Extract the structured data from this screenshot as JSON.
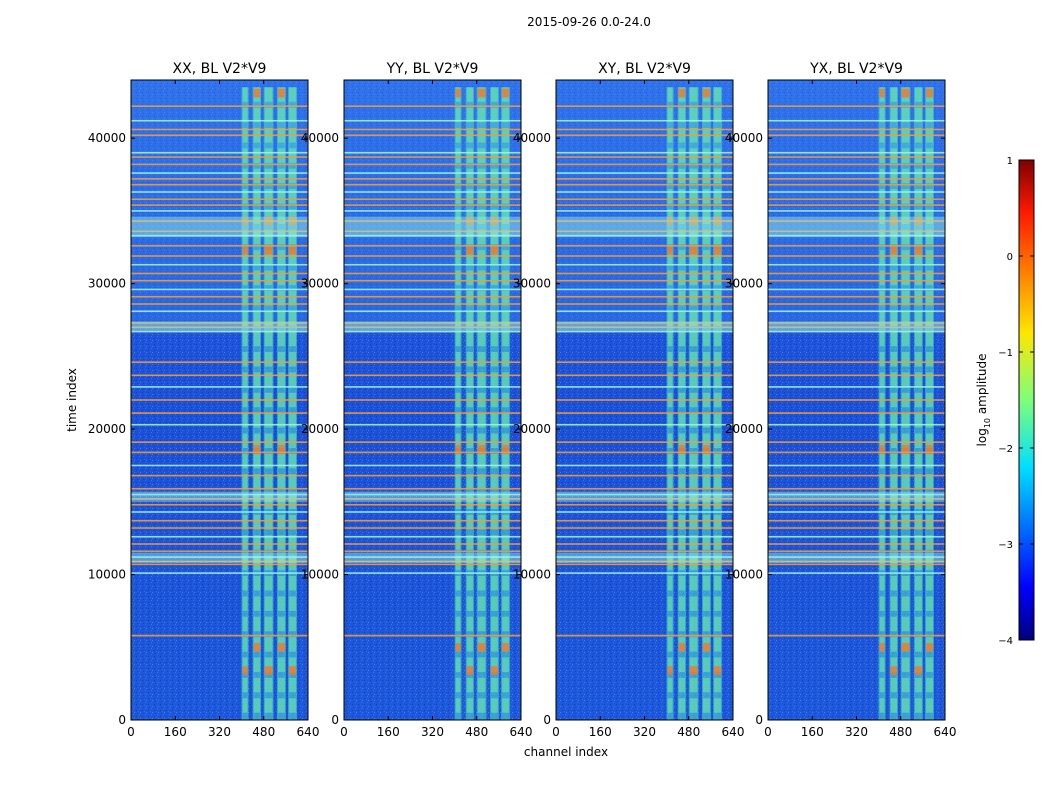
{
  "figure_title": "2015-09-26 0.0-24.0",
  "chart_data": [
    {
      "type": "heatmap",
      "title": "XX, BL V2*V9",
      "xlabel": "",
      "ylabel": "time index",
      "xlim": [
        0,
        640
      ],
      "ylim": [
        0,
        44000
      ],
      "xticks": [
        0,
        160,
        320,
        480,
        640
      ],
      "yticks": [
        0,
        10000,
        20000,
        30000,
        40000
      ],
      "band_channels": [
        [
          400,
          425
        ],
        [
          440,
          470
        ],
        [
          480,
          515
        ],
        [
          528,
          560
        ],
        [
          568,
          600
        ]
      ]
    },
    {
      "type": "heatmap",
      "title": "YY, BL V2*V9",
      "xlabel": "channel index",
      "ylabel": "",
      "xlim": [
        0,
        640
      ],
      "ylim": [
        0,
        44000
      ],
      "xticks": [
        0,
        160,
        320,
        480,
        640
      ],
      "yticks": [
        0,
        10000,
        20000,
        30000,
        40000
      ],
      "band_channels": [
        [
          400,
          425
        ],
        [
          440,
          470
        ],
        [
          480,
          515
        ],
        [
          528,
          560
        ],
        [
          568,
          600
        ]
      ]
    },
    {
      "type": "heatmap",
      "title": "XY, BL V2*V9",
      "xlabel": "",
      "ylabel": "",
      "xlim": [
        0,
        640
      ],
      "ylim": [
        0,
        44000
      ],
      "xticks": [
        0,
        160,
        320,
        480,
        640
      ],
      "yticks": [
        0,
        10000,
        20000,
        30000,
        40000
      ],
      "band_channels": [
        [
          400,
          425
        ],
        [
          440,
          470
        ],
        [
          480,
          515
        ],
        [
          528,
          560
        ],
        [
          568,
          600
        ]
      ]
    },
    {
      "type": "heatmap",
      "title": "YX, BL V2*V9",
      "xlabel": "",
      "ylabel": "",
      "xlim": [
        0,
        640
      ],
      "ylim": [
        0,
        44000
      ],
      "xticks": [
        0,
        160,
        320,
        480,
        640
      ],
      "yticks": [
        0,
        10000,
        20000,
        30000,
        40000
      ],
      "band_channels": [
        [
          400,
          425
        ],
        [
          440,
          470
        ],
        [
          480,
          515
        ],
        [
          528,
          560
        ],
        [
          568,
          600
        ]
      ]
    }
  ],
  "rfi_time_rows": [
    42200,
    41200,
    40600,
    40200,
    39000,
    38700,
    38200,
    37600,
    37200,
    36800,
    36300,
    35800,
    35400,
    35000,
    34300,
    33600,
    33300,
    32600,
    31900,
    31300,
    30700,
    30200,
    29600,
    29100,
    28600,
    28100,
    27300,
    27000,
    26700,
    24600,
    23700,
    22900,
    22000,
    21100,
    20300,
    19100,
    18400,
    17500,
    16800,
    15900,
    15500,
    15200,
    14800,
    14300,
    13700,
    13200,
    12600,
    12100,
    11600,
    11200,
    10900,
    10700,
    10100,
    5800
  ],
  "colorbar": {
    "label": "log10 amplitude",
    "label_main": "log",
    "label_sub": "10",
    "label_rest": " amplitude",
    "range": [
      -4,
      1
    ],
    "ticks": [
      1,
      0,
      -1,
      -2,
      -3,
      -4
    ],
    "tick_labels": [
      "1",
      "0",
      "−1",
      "−2",
      "−3",
      "−4"
    ],
    "colormap": "jet"
  },
  "colors": {
    "background_low": "#1a4fd6",
    "band_mid": "#4fe0c8",
    "hot": "#f07a2a",
    "rfi_line_orange": "#f29b3a",
    "rfi_line_cyan": "#9ff0e0"
  }
}
